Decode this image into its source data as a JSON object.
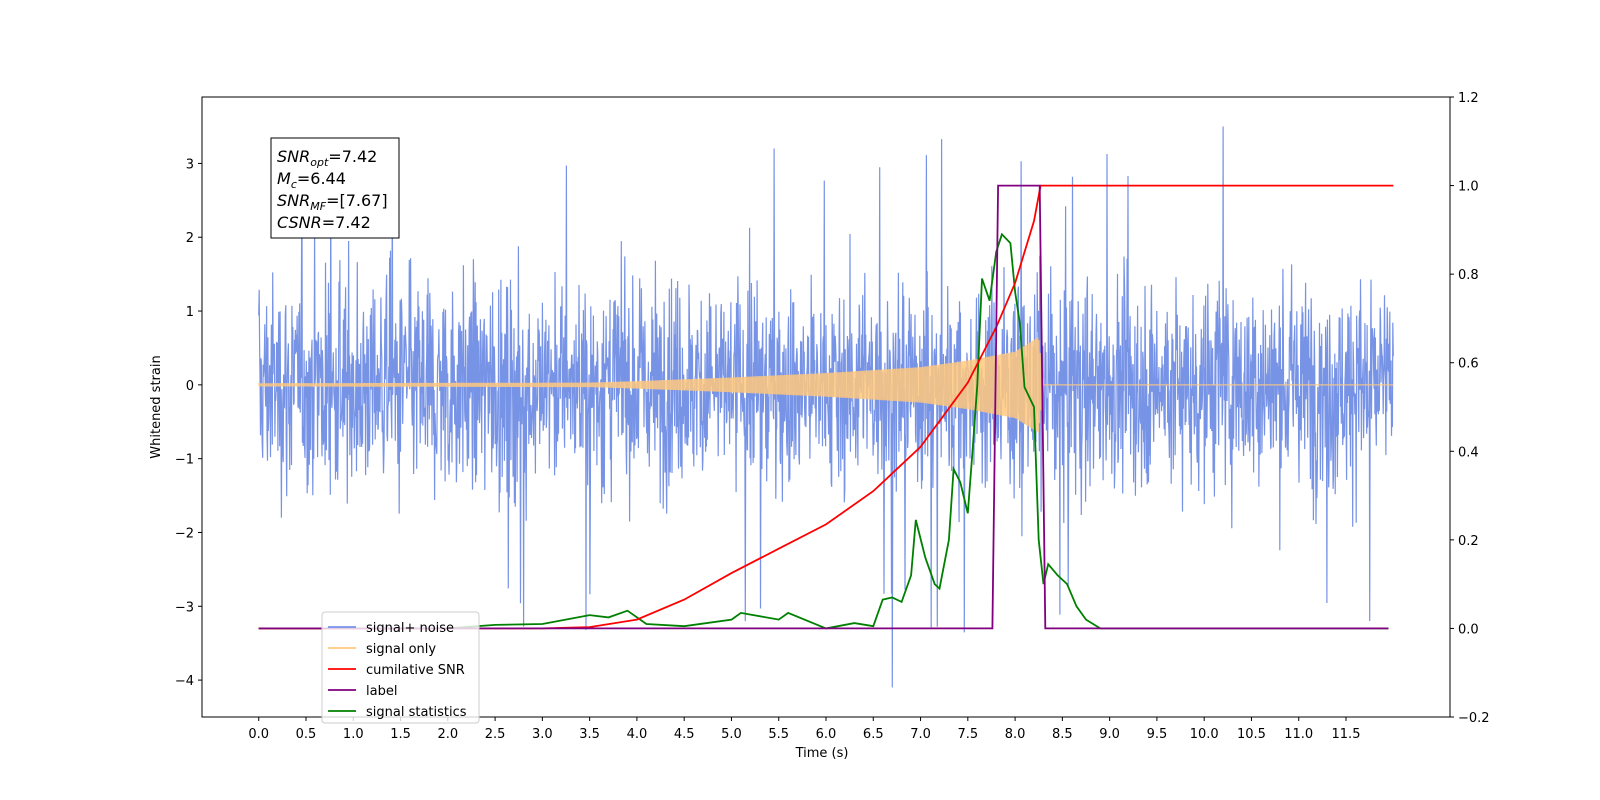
{
  "chart_data": {
    "type": "line",
    "xlabel": "Time (s)",
    "ylabel": "Whitened strain",
    "xlim": [
      -0.6,
      12.6
    ],
    "ylim": [
      -4.5,
      3.9
    ],
    "y2lim": [
      -0.2,
      1.2
    ],
    "grid": false,
    "legend_position": "lower-left",
    "x_ticks": [
      "0.0",
      "0.5",
      "1.0",
      "1.5",
      "2.0",
      "2.5",
      "3.0",
      "3.5",
      "4.0",
      "4.5",
      "5.0",
      "5.5",
      "6.0",
      "6.5",
      "7.0",
      "7.5",
      "8.0",
      "8.5",
      "9.0",
      "9.5",
      "10.0",
      "10.5",
      "11.0",
      "11.5"
    ],
    "y_ticks": [
      "3",
      "2",
      "1",
      "0",
      "−1",
      "−2",
      "−3",
      "−4"
    ],
    "y2_ticks": [
      "1.2",
      "1.0",
      "0.8",
      "0.6",
      "0.4",
      "0.2",
      "0.0",
      "−0.2"
    ],
    "annotation": {
      "lines": [
        {
          "base": "SNR",
          "sub": "opt",
          "value": "=7.42"
        },
        {
          "base": "M",
          "sub": "c",
          "value": "=6.44"
        },
        {
          "base": "SNR",
          "sub": "MF",
          "value": "=[7.67]"
        },
        {
          "base": "CSNR",
          "sub": "",
          "value": "=7.42"
        }
      ]
    },
    "series": [
      {
        "name": "signal+ noise",
        "color": "#7793e6",
        "axis": "left",
        "description_range": [
          -2.3,
          2.3
        ],
        "spikes": [
          3.5,
          -4.1
        ],
        "x_range": [
          0.0,
          12.0
        ]
      },
      {
        "name": "signal only",
        "color": "#ffc87c",
        "axis": "left",
        "envelope": {
          "x": [
            0.0,
            3.5,
            4.0,
            5.0,
            6.0,
            7.0,
            7.5,
            8.0,
            8.25,
            8.3,
            12.0
          ],
          "amp": [
            0.02,
            0.03,
            0.05,
            0.1,
            0.16,
            0.24,
            0.33,
            0.45,
            0.65,
            0.0,
            0.0
          ]
        }
      },
      {
        "name": "cumilative SNR",
        "color": "#ff0000",
        "axis": "right",
        "x": [
          0.0,
          2.0,
          3.0,
          3.5,
          4.0,
          4.5,
          5.0,
          5.5,
          6.0,
          6.5,
          7.0,
          7.5,
          7.8,
          8.0,
          8.2,
          8.27,
          8.3,
          12.0
        ],
        "y": [
          0.0,
          0.0,
          0.0,
          0.003,
          0.02,
          0.065,
          0.125,
          0.18,
          0.235,
          0.31,
          0.41,
          0.555,
          0.68,
          0.78,
          0.92,
          1.0,
          1.0,
          1.0
        ]
      },
      {
        "name": "label",
        "color": "#800080",
        "axis": "right",
        "x": [
          0.0,
          7.76,
          7.82,
          8.26,
          8.32,
          11.95
        ],
        "y": [
          0.0,
          0.0,
          1.0,
          1.0,
          0.0,
          0.0
        ]
      },
      {
        "name": "signal statistics",
        "color": "#008000",
        "axis": "right",
        "x": [
          0.0,
          2.0,
          2.5,
          3.0,
          3.5,
          3.7,
          3.9,
          4.1,
          4.5,
          5.0,
          5.1,
          5.5,
          5.6,
          6.0,
          6.3,
          6.5,
          6.6,
          6.7,
          6.8,
          6.9,
          6.95,
          7.05,
          7.15,
          7.2,
          7.3,
          7.35,
          7.42,
          7.5,
          7.55,
          7.6,
          7.65,
          7.73,
          7.8,
          7.86,
          7.95,
          8.0,
          8.05,
          8.1,
          8.2,
          8.25,
          8.3,
          8.35,
          8.45,
          8.55,
          8.65,
          8.75,
          8.9,
          11.95
        ],
        "y": [
          0.0,
          0.0,
          0.008,
          0.01,
          0.03,
          0.025,
          0.04,
          0.01,
          0.005,
          0.02,
          0.035,
          0.02,
          0.035,
          0.0,
          0.012,
          0.005,
          0.065,
          0.07,
          0.06,
          0.12,
          0.245,
          0.16,
          0.1,
          0.09,
          0.2,
          0.36,
          0.33,
          0.26,
          0.4,
          0.55,
          0.79,
          0.74,
          0.85,
          0.89,
          0.87,
          0.76,
          0.69,
          0.545,
          0.5,
          0.2,
          0.1,
          0.145,
          0.12,
          0.1,
          0.05,
          0.02,
          0.0,
          0.0
        ]
      }
    ]
  }
}
